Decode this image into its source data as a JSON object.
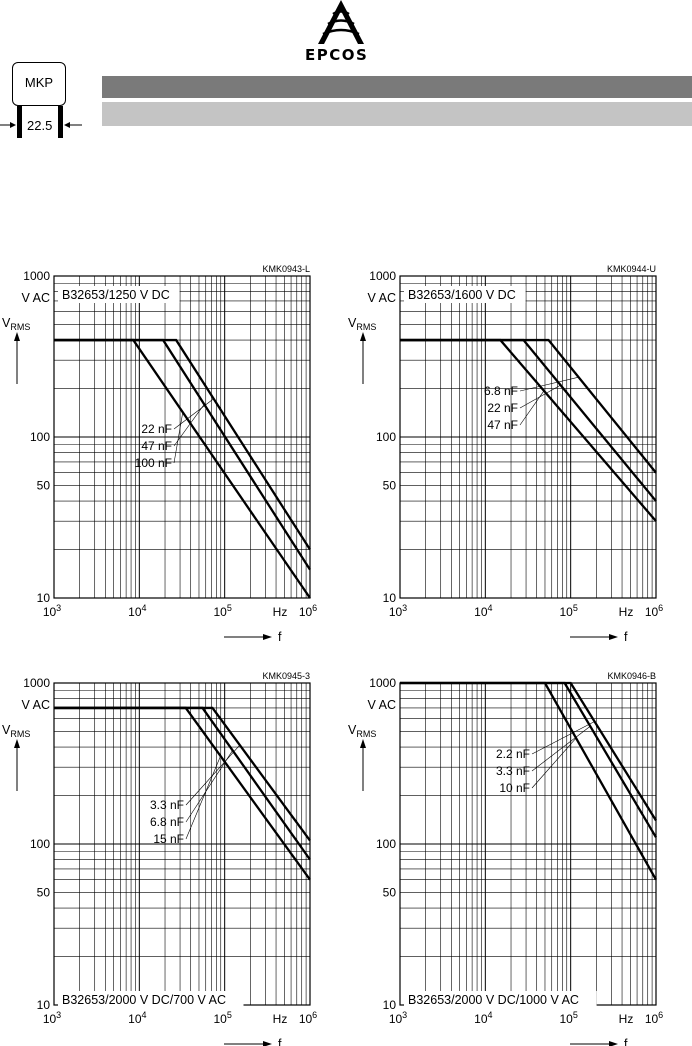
{
  "header": {
    "brand": "EPCOS",
    "badge_label": "MKP",
    "pitch_label": "22.5"
  },
  "chart_data": [
    {
      "type": "line",
      "code": "KMK0943-L",
      "title": "B32653/1250 V DC",
      "title_position": "top",
      "ylabel_top": "V AC",
      "ylabel_symbol": "V",
      "ylabel_sub": "RMS",
      "xlabel": "f",
      "xunit": "Hz",
      "x_scale": "log",
      "y_scale": "log",
      "xlim": [
        1000,
        1000000
      ],
      "ylim": [
        10,
        1000
      ],
      "y_ticks": [
        "1000",
        "100",
        "50",
        "10"
      ],
      "y_tick_values": [
        1000,
        100,
        50,
        10
      ],
      "x_tick_exponents": [
        "3",
        "4",
        "5",
        "6"
      ],
      "grid": true,
      "series": [
        {
          "name": "22 nF",
          "x": [
            1000,
            27000,
            1000000
          ],
          "y": [
            400,
            400,
            20
          ]
        },
        {
          "name": "47 nF",
          "x": [
            1000,
            19000,
            1000000
          ],
          "y": [
            400,
            400,
            15
          ]
        },
        {
          "name": "100 nF",
          "x": [
            1000,
            8500,
            1000000
          ],
          "y": [
            400,
            400,
            10
          ]
        }
      ]
    },
    {
      "type": "line",
      "code": "KMK0944-U",
      "title": "B32653/1600 V DC",
      "title_position": "top",
      "ylabel_top": "V AC",
      "ylabel_symbol": "V",
      "ylabel_sub": "RMS",
      "xlabel": "f",
      "xunit": "Hz",
      "x_scale": "log",
      "y_scale": "log",
      "xlim": [
        1000,
        1000000
      ],
      "ylim": [
        10,
        1000
      ],
      "y_ticks": [
        "1000",
        "100",
        "50",
        "10"
      ],
      "y_tick_values": [
        1000,
        100,
        50,
        10
      ],
      "x_tick_exponents": [
        "3",
        "4",
        "5",
        "6"
      ],
      "grid": true,
      "series": [
        {
          "name": "6.8 nF",
          "x": [
            1000,
            55000,
            1000000
          ],
          "y": [
            400,
            400,
            60
          ]
        },
        {
          "name": "22 nF",
          "x": [
            1000,
            28000,
            1000000
          ],
          "y": [
            400,
            400,
            40
          ]
        },
        {
          "name": "47 nF",
          "x": [
            1000,
            15000,
            1000000
          ],
          "y": [
            400,
            400,
            30
          ]
        }
      ]
    },
    {
      "type": "line",
      "code": "KMK0945-3",
      "title": "B32653/2000 V DC/700 V AC",
      "title_position": "bottom",
      "ylabel_top": "V AC",
      "ylabel_symbol": "V",
      "ylabel_sub": "RMS",
      "xlabel": "f",
      "xunit": "Hz",
      "x_scale": "log",
      "y_scale": "log",
      "xlim": [
        1000,
        1000000
      ],
      "ylim": [
        10,
        1000
      ],
      "y_ticks": [
        "1000",
        "100",
        "50",
        "10"
      ],
      "y_tick_values": [
        1000,
        100,
        50,
        10
      ],
      "x_tick_exponents": [
        "3",
        "4",
        "5",
        "6"
      ],
      "grid": true,
      "series": [
        {
          "name": "3.3 nF",
          "x": [
            1000,
            72000,
            1000000
          ],
          "y": [
            700,
            700,
            105
          ]
        },
        {
          "name": "6.8 nF",
          "x": [
            1000,
            55000,
            1000000
          ],
          "y": [
            700,
            700,
            80
          ]
        },
        {
          "name": "15 nF",
          "x": [
            1000,
            35000,
            1000000
          ],
          "y": [
            700,
            700,
            60
          ]
        }
      ]
    },
    {
      "type": "line",
      "code": "KMK0946-B",
      "title": "B32653/2000 V DC/1000 V AC",
      "title_position": "bottom",
      "ylabel_top": "V AC",
      "ylabel_symbol": "V",
      "ylabel_sub": "RMS",
      "xlabel": "f",
      "xunit": "Hz",
      "x_scale": "log",
      "y_scale": "log",
      "xlim": [
        1000,
        1000000
      ],
      "ylim": [
        10,
        1000
      ],
      "y_ticks": [
        "1000",
        "100",
        "50",
        "10"
      ],
      "y_tick_values": [
        1000,
        100,
        50,
        10
      ],
      "x_tick_exponents": [
        "3",
        "4",
        "5",
        "6"
      ],
      "grid": true,
      "series": [
        {
          "name": "2.2 nF",
          "x": [
            1000,
            100000,
            1000000
          ],
          "y": [
            1000,
            1000,
            140
          ]
        },
        {
          "name": "3.3 nF",
          "x": [
            1000,
            85000,
            1000000
          ],
          "y": [
            1000,
            1000,
            110
          ]
        },
        {
          "name": "10 nF",
          "x": [
            1000,
            50000,
            1000000
          ],
          "y": [
            1000,
            1000,
            60
          ]
        }
      ]
    }
  ]
}
